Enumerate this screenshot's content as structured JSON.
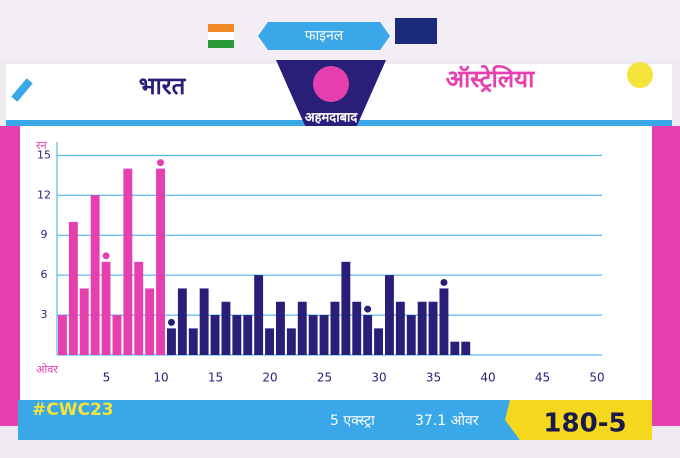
{
  "stage": "फाइनल",
  "venue": "अहमदाबाद",
  "hashtag": "#CWC23",
  "extras": "5 एक्स्ट्रा",
  "overs": "37.1 ओवर",
  "score": "180-5",
  "chart_data": {
    "type": "bar",
    "y_label": "रन",
    "x_label": "ओवर",
    "xlim": [
      0,
      50
    ],
    "xticks": [
      5,
      10,
      15,
      20,
      25,
      30,
      35,
      40,
      45,
      50
    ],
    "ylim": [
      0,
      16
    ],
    "yticks": [
      3,
      6,
      9,
      12,
      15
    ],
    "grid": true,
    "series": [
      {
        "name": "भारत",
        "color": "#e63fb0",
        "x": [
          1,
          2,
          3,
          4,
          5,
          6,
          7,
          8,
          9,
          10
        ],
        "values": [
          3,
          10,
          5,
          12,
          7,
          3,
          14,
          7,
          5,
          14
        ],
        "wicket_overs": [
          5,
          10
        ]
      },
      {
        "name": "ऑस्ट्रेलिया",
        "color": "#2a1f78",
        "x": [
          11,
          12,
          13,
          14,
          15,
          16,
          17,
          18,
          19,
          20,
          21,
          22,
          23,
          24,
          25,
          26,
          27,
          28,
          29,
          30,
          31,
          32,
          33,
          34,
          35,
          36,
          37,
          38
        ],
        "values": [
          2,
          5,
          2,
          5,
          3,
          4,
          3,
          3,
          6,
          2,
          4,
          2,
          4,
          3,
          3,
          4,
          7,
          4,
          3,
          2,
          6,
          4,
          3,
          4,
          4,
          5,
          1,
          1
        ],
        "wicket_overs": [
          11,
          29,
          36
        ]
      }
    ]
  }
}
